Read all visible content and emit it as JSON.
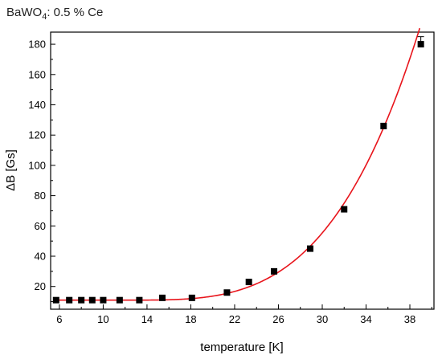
{
  "chart_data": {
    "type": "scatter",
    "title_main": "BaWO",
    "title_sub": "4",
    "title_rest": ": 0.5 % Ce",
    "xlabel": "temperature [K]",
    "ylabel": "ΔB [Gs]",
    "xlim": [
      5.2,
      40.2
    ],
    "ylim": [
      5,
      188
    ],
    "xticks": [
      6,
      10,
      14,
      18,
      22,
      26,
      30,
      34,
      38
    ],
    "yticks": [
      20,
      40,
      60,
      80,
      100,
      120,
      140,
      160,
      180
    ],
    "grid": false,
    "colors": {
      "points": "#000000",
      "fit": "#e8141b",
      "axis": "#000000"
    },
    "series": [
      {
        "kind": "points",
        "x": [
          5.7,
          6.9,
          8.0,
          9.0,
          10.0,
          11.5,
          13.3,
          15.4,
          18.1,
          21.3,
          23.3,
          25.6,
          28.9,
          32.0,
          35.6,
          39.0
        ],
        "y": [
          11,
          11,
          11,
          11,
          11,
          11,
          11,
          12.5,
          12.5,
          16,
          23,
          30,
          45,
          71,
          126,
          180
        ],
        "error_last": 5
      },
      {
        "kind": "fit",
        "model": "y = 11 + 1.9e-3 * (x - 12)^3.48"
      }
    ]
  }
}
